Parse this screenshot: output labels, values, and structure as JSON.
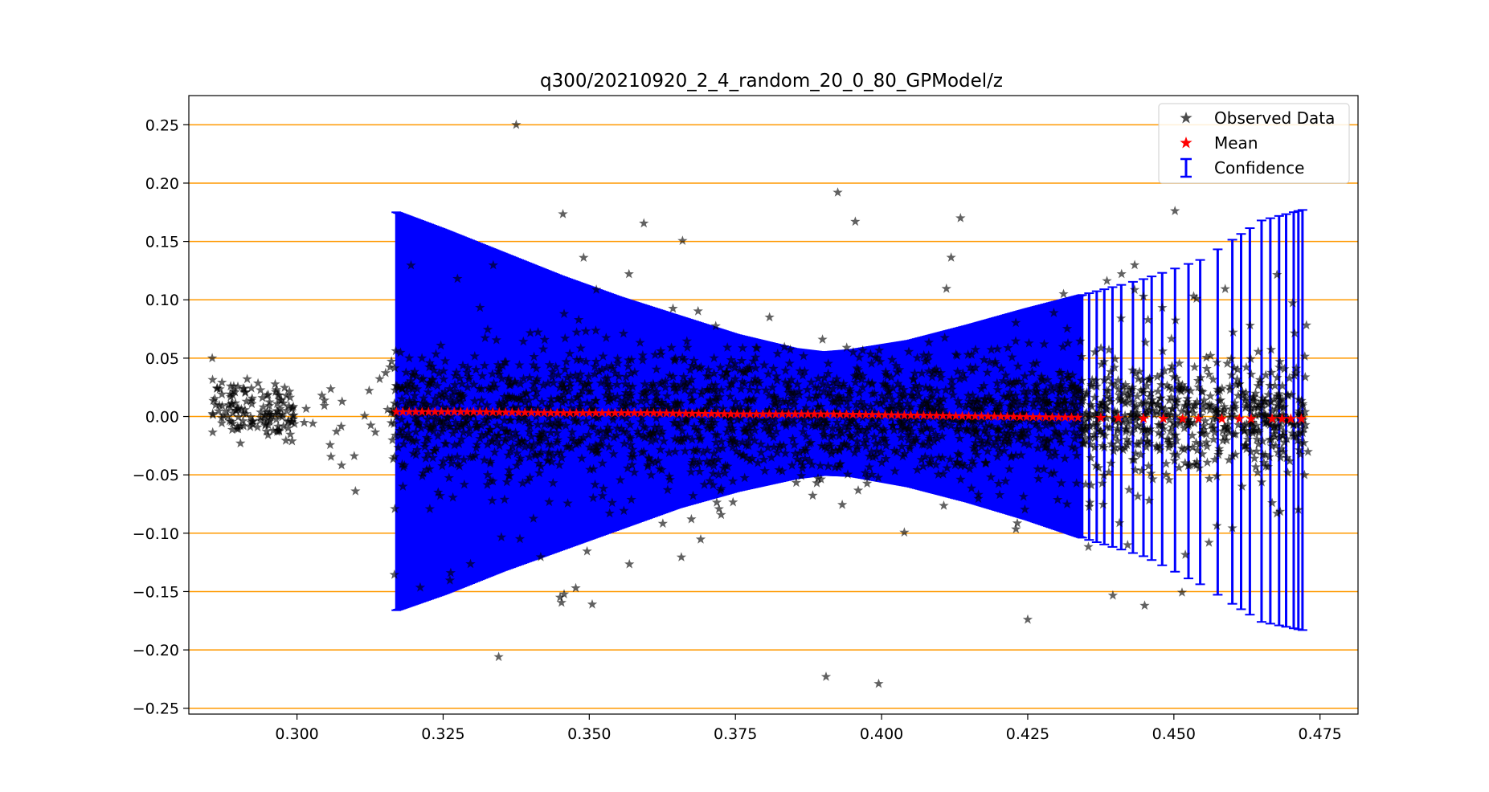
{
  "chart_data": {
    "type": "scatter",
    "title": "q300/20210920_2_4_random_20_0_80_GPModel/z",
    "xlabel": "",
    "ylabel": "",
    "xlim": [
      0.2815,
      0.4815
    ],
    "ylim": [
      -0.255,
      0.275
    ],
    "x_ticks": [
      0.3,
      0.325,
      0.35,
      0.375,
      0.4,
      0.425,
      0.45,
      0.475
    ],
    "x_tick_labels": [
      "0.300",
      "0.325",
      "0.350",
      "0.375",
      "0.400",
      "0.425",
      "0.450",
      "0.475"
    ],
    "y_ticks": [
      0.25,
      0.2,
      0.15,
      0.1,
      0.05,
      0.0,
      -0.05,
      -0.1,
      -0.15,
      -0.2,
      -0.25
    ],
    "y_tick_labels": [
      "0.25",
      "0.20",
      "0.15",
      "0.10",
      "0.05",
      "0.00",
      "−0.05",
      "−0.10",
      "−0.15",
      "−0.20",
      "−0.25"
    ],
    "grid": "horizontal",
    "legend_position": "top-right",
    "colors": {
      "observed": "#000000",
      "mean": "#ff0000",
      "confidence": "#0000ff",
      "grid": "#ff9900"
    },
    "series": [
      {
        "name": "Observed Data",
        "marker": "star",
        "color": "#000000",
        "x_range": [
          0.285,
          0.473
        ],
        "notable_points": [
          {
            "x": 0.3375,
            "y": 0.25
          },
          {
            "x": 0.3925,
            "y": 0.192
          },
          {
            "x": 0.3345,
            "y": -0.206
          },
          {
            "x": 0.3905,
            "y": -0.223
          },
          {
            "x": 0.3995,
            "y": -0.229
          },
          {
            "x": 0.425,
            "y": -0.174
          },
          {
            "x": 0.4135,
            "y": 0.17
          },
          {
            "x": 0.3955,
            "y": 0.167
          },
          {
            "x": 0.3505,
            "y": -0.161
          },
          {
            "x": 0.345,
            "y": -0.155
          },
          {
            "x": 0.445,
            "y": -0.162
          },
          {
            "x": 0.31,
            "y": -0.064
          },
          {
            "x": 0.2855,
            "y": 0.05
          }
        ]
      },
      {
        "name": "Mean",
        "marker": "star",
        "color": "#ff0000",
        "x": [
          0.317,
          0.33,
          0.345,
          0.36,
          0.375,
          0.39,
          0.405,
          0.42,
          0.435,
          0.45,
          0.465,
          0.472
        ],
        "y": [
          0.004,
          0.004,
          0.003,
          0.003,
          0.002,
          0.002,
          0.001,
          0.0,
          -0.001,
          -0.002,
          -0.002,
          -0.002
        ]
      },
      {
        "name": "Confidence",
        "type": "errorbar",
        "color": "#0000ff",
        "x": [
          0.317,
          0.325,
          0.335,
          0.345,
          0.355,
          0.365,
          0.375,
          0.385,
          0.39,
          0.395,
          0.405,
          0.415,
          0.425,
          0.435,
          0.445,
          0.455,
          0.465,
          0.472
        ],
        "upper": [
          0.175,
          0.16,
          0.14,
          0.12,
          0.102,
          0.086,
          0.07,
          0.058,
          0.055,
          0.057,
          0.065,
          0.078,
          0.092,
          0.105,
          0.118,
          0.135,
          0.168,
          0.177
        ],
        "lower": [
          -0.166,
          -0.152,
          -0.132,
          -0.114,
          -0.096,
          -0.078,
          -0.064,
          -0.053,
          -0.05,
          -0.051,
          -0.06,
          -0.073,
          -0.088,
          -0.105,
          -0.12,
          -0.145,
          -0.176,
          -0.183
        ]
      }
    ]
  }
}
